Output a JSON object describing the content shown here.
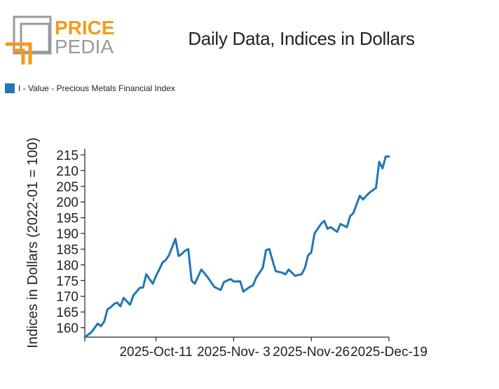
{
  "logo": {
    "line1": "PRICE",
    "line2": "PEDIA",
    "accent": "#f39a1b",
    "gray": "#9a9a9a"
  },
  "chart_data": {
    "type": "line",
    "title": "Daily Data, Indices in Dollars",
    "xlabel": "",
    "ylabel": "Indices in Dollars (2022-01 = 100)",
    "legend_position": "top-left",
    "ylim": [
      157,
      217
    ],
    "yticks": [
      160,
      165,
      170,
      175,
      180,
      185,
      190,
      195,
      200,
      205,
      210,
      215
    ],
    "xticks": [
      {
        "index": 0,
        "label": ""
      },
      {
        "index": 22,
        "label": "2025-Oct-11"
      },
      {
        "index": 46,
        "label": "2025-Nov- 3"
      },
      {
        "index": 70,
        "label": "2025-Nov-26"
      },
      {
        "index": 94,
        "label": "2025-Dec-19"
      }
    ],
    "xrange": [
      0,
      94
    ],
    "series": [
      {
        "name": "I - Value - Precious Metals Financial Index",
        "color": "#1f77b4",
        "x": [
          0,
          2,
          4,
          5,
          6,
          7,
          8,
          9,
          10,
          11,
          12,
          14,
          15,
          16,
          17,
          18,
          19,
          21,
          22,
          23,
          24,
          25,
          26,
          28,
          29,
          30,
          31,
          32,
          33,
          34,
          36,
          37,
          38,
          39,
          40,
          42,
          43,
          45,
          46,
          47,
          48,
          49,
          51,
          52,
          53,
          54,
          55,
          56,
          57,
          59,
          61,
          62,
          63,
          64,
          65,
          67,
          68,
          69,
          70,
          71,
          72,
          73,
          74,
          75,
          76,
          78,
          79,
          80,
          81,
          82,
          83,
          85,
          86,
          87,
          88,
          90,
          91,
          92,
          93,
          94
        ],
        "values": [
          157.0,
          158.5,
          161.3,
          160.5,
          162.0,
          165.8,
          166.5,
          167.5,
          168.0,
          166.8,
          169.5,
          167.3,
          170.3,
          171.5,
          172.7,
          172.8,
          177.0,
          174.0,
          176.5,
          178.5,
          180.7,
          181.5,
          183.0,
          188.3,
          182.8,
          183.5,
          184.5,
          185.0,
          175.0,
          174.0,
          178.5,
          177.3,
          176.0,
          174.5,
          173.0,
          172.0,
          174.5,
          175.5,
          174.7,
          174.7,
          174.8,
          171.5,
          173.0,
          173.5,
          176.0,
          177.5,
          179.0,
          184.7,
          185.0,
          178.0,
          177.5,
          177.0,
          178.5,
          177.5,
          176.5,
          177.0,
          179.0,
          183.0,
          184.0,
          190.0,
          191.5,
          193.0,
          194.0,
          191.5,
          192.0,
          190.5,
          193.0,
          192.5,
          192.0,
          195.5,
          196.5,
          202.0,
          200.8,
          202.0,
          203.0,
          204.5,
          212.8,
          210.7,
          214.5,
          214.5
        ]
      }
    ]
  }
}
